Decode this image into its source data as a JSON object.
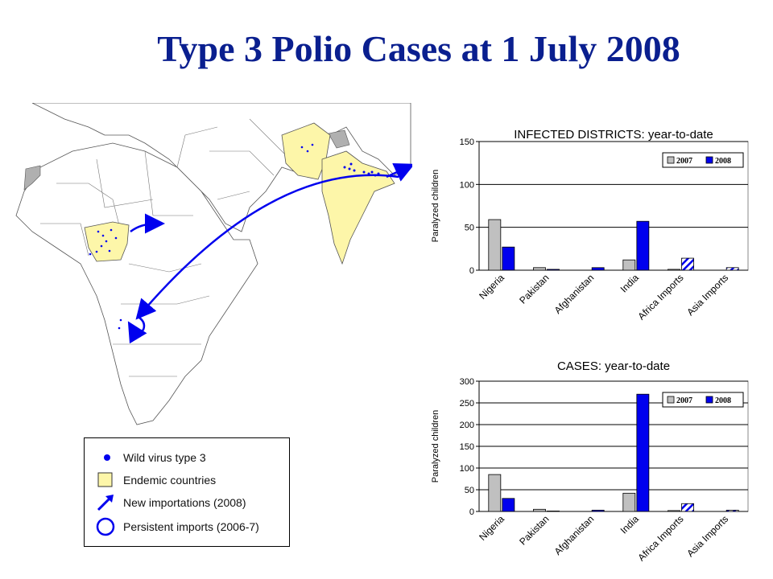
{
  "title": "Type 3 Polio Cases at 1 July 2008",
  "legend": {
    "items": [
      {
        "label": "Wild virus type 3",
        "icon": "dot-icon"
      },
      {
        "label": "Endemic countries",
        "icon": "yellow-swatch-icon"
      },
      {
        "label": "New importations (2008)",
        "icon": "arrow-icon"
      },
      {
        "label": "Persistent imports (2006-7)",
        "icon": "circle-icon"
      }
    ]
  },
  "colors": {
    "endemic": "#fdf6a9",
    "virus": "#0000ee",
    "series_2007": "#c0c0c0",
    "series_2008": "#0000ee",
    "title": "#0a1f8f"
  },
  "chart_data": [
    {
      "type": "bar",
      "title": "INFECTED DISTRICTS: year-to-date",
      "ylabel": "Paralyzed children",
      "ylim": [
        0,
        150
      ],
      "yticks": [
        0,
        50,
        100,
        150
      ],
      "grid": true,
      "legend_position": "top-right",
      "categories": [
        "Nigeria",
        "Pakistan",
        "Afghanistan",
        "India",
        "Africa Imports",
        "Asia Imports"
      ],
      "series": [
        {
          "name": "2007",
          "color": "#c0c0c0",
          "values": [
            59,
            3,
            0,
            12,
            1,
            0
          ]
        },
        {
          "name": "2008",
          "color": "#0000ee",
          "values": [
            27,
            1,
            3,
            57,
            14,
            3
          ],
          "hatched": [
            false,
            false,
            false,
            false,
            true,
            true
          ]
        }
      ]
    },
    {
      "type": "bar",
      "title": "CASES: year-to-date",
      "ylabel": "Paralyzed children",
      "ylim": [
        0,
        300
      ],
      "yticks": [
        0,
        50,
        100,
        150,
        200,
        250,
        300
      ],
      "grid": true,
      "legend_position": "top-right",
      "categories": [
        "Nigeria",
        "Pakistan",
        "Afghanistan",
        "India",
        "Africa Imports",
        "Asia Imports"
      ],
      "series": [
        {
          "name": "2007",
          "color": "#c0c0c0",
          "values": [
            85,
            5,
            0,
            42,
            2,
            0
          ]
        },
        {
          "name": "2008",
          "color": "#0000ee",
          "values": [
            30,
            1,
            3,
            270,
            18,
            3
          ],
          "hatched": [
            false,
            false,
            false,
            false,
            true,
            true
          ]
        }
      ]
    }
  ]
}
